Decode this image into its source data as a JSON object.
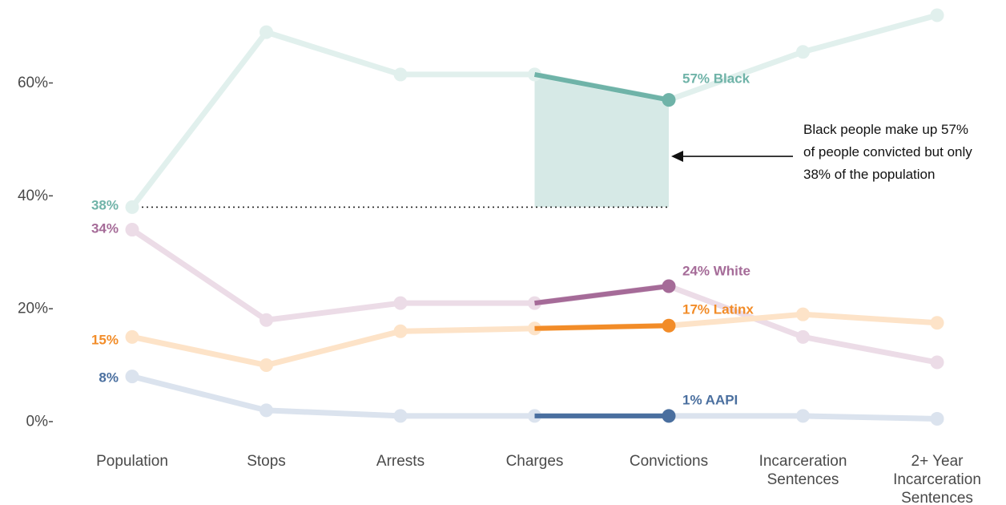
{
  "chart_data": {
    "type": "line",
    "title": "",
    "xlabel": "",
    "ylabel": "",
    "categories": [
      [
        "Population"
      ],
      [
        "Stops"
      ],
      [
        "Arrests"
      ],
      [
        "Charges"
      ],
      [
        "Convictions"
      ],
      [
        "Incarceration",
        "Sentences"
      ],
      [
        "2+ Year",
        "Incarceration",
        "Sentences"
      ]
    ],
    "y_ticks": [
      {
        "value": 0,
        "label": "0%"
      },
      {
        "value": 20,
        "label": "20%"
      },
      {
        "value": 40,
        "label": "40%"
      },
      {
        "value": 60,
        "label": "60%"
      }
    ],
    "ylim": [
      -1,
      72
    ],
    "grid": false,
    "highlight_segment": [
      3,
      4
    ],
    "series": [
      {
        "name": "Black",
        "color": "#6fb3a8",
        "faded_color": "#e1f0ed",
        "values": [
          38,
          69,
          61.5,
          61.5,
          57,
          65.5,
          72
        ],
        "start_label": "38%",
        "end_label": "57% Black"
      },
      {
        "name": "White",
        "color": "#a56b98",
        "faded_color": "#ecdce7",
        "values": [
          34,
          18,
          21,
          21,
          24,
          15,
          10.5
        ],
        "start_label": "34%",
        "end_label": "24% White"
      },
      {
        "name": "Latinx",
        "color": "#f28c28",
        "faded_color": "#fde3c8",
        "values": [
          15,
          10,
          16,
          16.5,
          17,
          19,
          17.5
        ],
        "start_label": "15%",
        "end_label": "17% Latinx"
      },
      {
        "name": "AAPI",
        "color": "#4a6f9f",
        "faded_color": "#dbe3ee",
        "values": [
          8,
          2,
          1,
          1,
          1,
          1,
          0.5
        ],
        "start_label": "8%",
        "end_label": "1% AAPI"
      }
    ],
    "annotation": {
      "lines": [
        "Black people make up 57%",
        "of people convicted but only",
        "38% of the population"
      ],
      "shade_color": "#d6e9e6",
      "reference_value": 38,
      "arrow_target_value": 47
    }
  }
}
